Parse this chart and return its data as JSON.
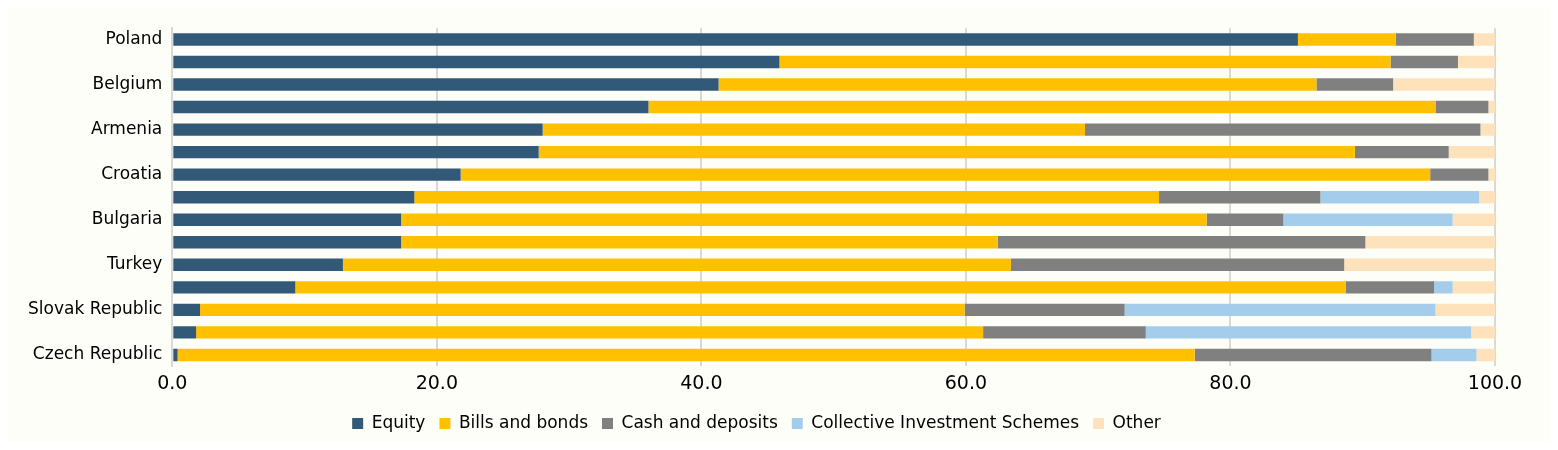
{
  "chart_data": {
    "type": "bar",
    "orientation": "horizontal",
    "stacked": true,
    "categories": [
      "Poland",
      null,
      "Belgium",
      null,
      "Armenia",
      null,
      "Croatia",
      null,
      "Bulgaria",
      null,
      "Turkey",
      null,
      "Slovak Republic",
      null,
      "Czech Republic"
    ],
    "series": [
      {
        "name": "Equity",
        "color": "#325a78",
        "values": [
          85.1,
          45.9,
          41.3,
          36.0,
          28.0,
          27.7,
          21.8,
          18.3,
          17.3,
          17.3,
          12.9,
          9.3,
          2.1,
          1.8,
          0.4
        ]
      },
      {
        "name": "Bills and bonds",
        "color": "#ffc000",
        "values": [
          7.4,
          46.2,
          45.2,
          59.5,
          41.0,
          61.7,
          73.3,
          56.3,
          60.9,
          45.1,
          50.5,
          79.4,
          57.8,
          59.5,
          76.9
        ]
      },
      {
        "name": "Cash and deposits",
        "color": "#808080",
        "values": [
          5.9,
          5.1,
          5.8,
          4.0,
          29.9,
          7.1,
          4.4,
          12.2,
          5.8,
          27.8,
          25.2,
          6.7,
          12.1,
          12.3,
          17.9
        ]
      },
      {
        "name": "Collective Investment Schemes",
        "color": "#a4cdec",
        "values": [
          0,
          0,
          0,
          0,
          0,
          0,
          0,
          12.0,
          12.8,
          0,
          0,
          1.4,
          23.5,
          24.6,
          3.4
        ]
      },
      {
        "name": "Other",
        "color": "#fde2bc",
        "values": [
          1.6,
          2.8,
          7.7,
          0.5,
          1.1,
          3.5,
          0.5,
          1.2,
          3.2,
          9.8,
          11.4,
          3.2,
          4.5,
          1.8,
          1.4
        ]
      }
    ],
    "xlim": [
      0,
      100
    ],
    "xticks": [
      {
        "value": 0,
        "label": "0.0"
      },
      {
        "value": 20,
        "label": "20.0"
      },
      {
        "value": 40,
        "label": "40.0"
      },
      {
        "value": 60,
        "label": "60.0"
      },
      {
        "value": 80,
        "label": "80.0"
      },
      {
        "value": 100,
        "label": "100.0"
      }
    ],
    "grid": "x",
    "legend": "bottom"
  }
}
